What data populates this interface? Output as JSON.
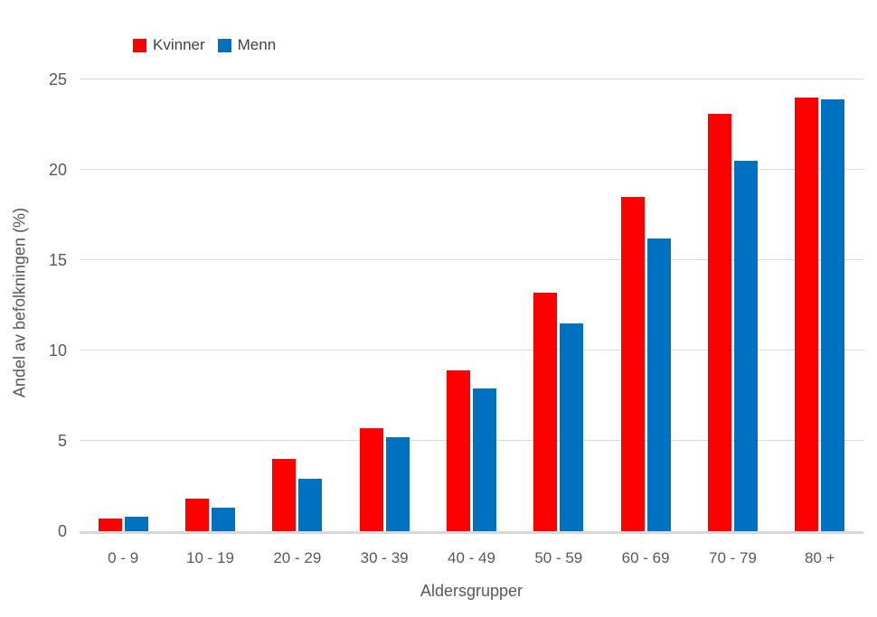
{
  "chart_data": {
    "type": "bar",
    "title": "",
    "categories": [
      "0 - 9",
      "10 - 19",
      "20 - 29",
      "30 - 39",
      "40 - 49",
      "50 - 59",
      "60 - 69",
      "70 - 79",
      "80 +"
    ],
    "series": [
      {
        "name": "Kvinner",
        "color": "#FF0000",
        "values": [
          0.7,
          1.8,
          4.0,
          5.7,
          8.9,
          13.2,
          18.5,
          23.1,
          24.0
        ]
      },
      {
        "name": "Menn",
        "color": "#0070C0",
        "values": [
          0.8,
          1.3,
          2.9,
          5.2,
          7.9,
          11.5,
          16.2,
          20.5,
          23.9
        ]
      }
    ],
    "xlabel": "Aldersgrupper",
    "ylabel": "Andel av befolkningen (%)",
    "ylim": [
      0,
      25
    ],
    "yticks": [
      0,
      5,
      10,
      15,
      20,
      25
    ],
    "grid": true,
    "legend_position": "top-left",
    "colors": {
      "gridline": "#D9D9D9",
      "axis_line": "#D7D7D7",
      "tick_text": "#595959",
      "legend_text": "#404040",
      "background": "#FFFFFF"
    }
  }
}
